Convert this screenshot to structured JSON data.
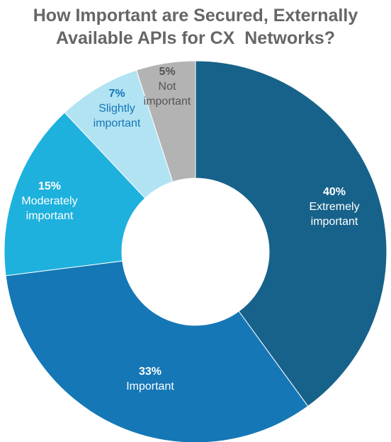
{
  "title": {
    "line1": "How Important are Secured, Externally",
    "line2": "Available APIs for CX  Networks?"
  },
  "chart_data": {
    "type": "pie",
    "title": "How Important are Secured, Externally Available APIs for CX  Networks?",
    "donut": true,
    "slices": [
      {
        "label": "Extremely important",
        "label_lines": [
          "Extremely",
          "important"
        ],
        "value": 40,
        "value_label": "40%",
        "color": "#17628a",
        "text_color": "#ffffff"
      },
      {
        "label": "Important",
        "label_lines": [
          "Important"
        ],
        "value": 33,
        "value_label": "33%",
        "color": "#1577b6",
        "text_color": "#ffffff"
      },
      {
        "label": "Moderately important",
        "label_lines": [
          "Moderately",
          "important"
        ],
        "value": 15,
        "value_label": "15%",
        "color": "#1eb1dd",
        "text_color": "#ffffff"
      },
      {
        "label": "Slightly important",
        "label_lines": [
          "Slightly",
          "important"
        ],
        "value": 7,
        "value_label": "7%",
        "color": "#b1e3f3",
        "text_color": "#1577b6"
      },
      {
        "label": "Not important",
        "label_lines": [
          "Not",
          "important"
        ],
        "value": 5,
        "value_label": "5%",
        "color": "#b3b3b3",
        "text_color": "#555555"
      }
    ]
  }
}
